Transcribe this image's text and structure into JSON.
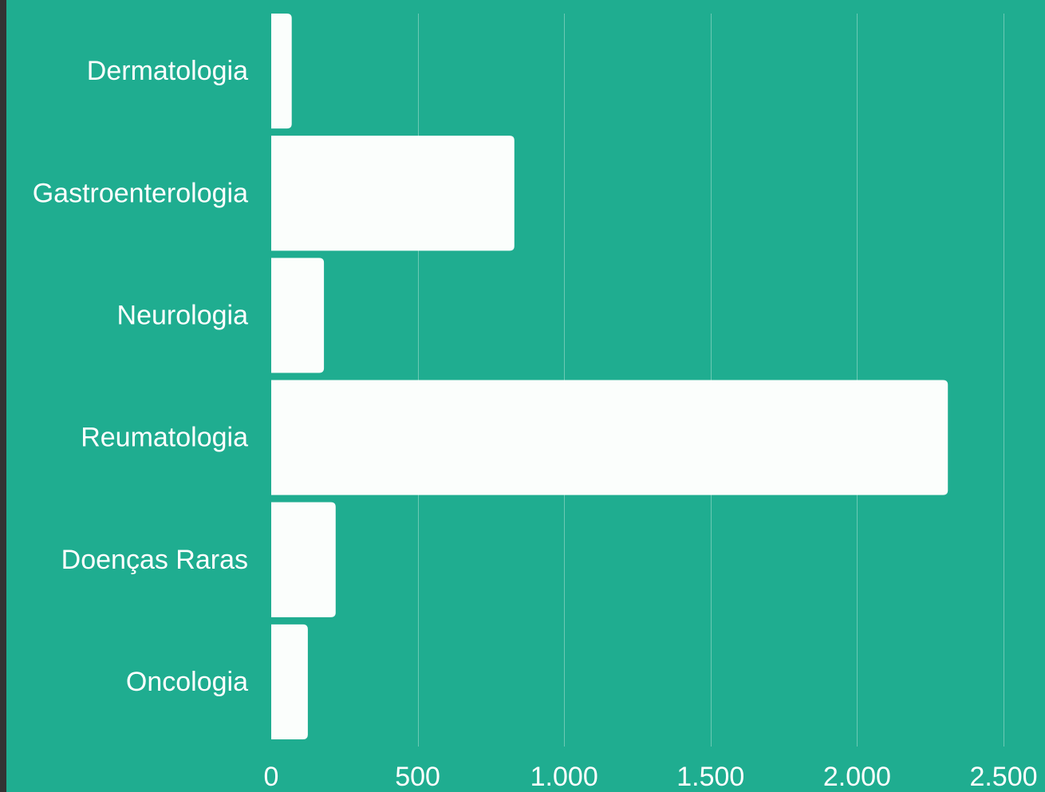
{
  "chart_data": {
    "type": "bar",
    "orientation": "horizontal",
    "categories": [
      "Dermatologia",
      "Gastroenterologia",
      "Neurologia",
      "Reumatologia",
      "Doenças Raras",
      "Oncologia"
    ],
    "values": [
      70,
      830,
      180,
      2310,
      220,
      125
    ],
    "xlim": [
      0,
      2500
    ],
    "xticks": [
      0,
      500,
      1000,
      1500,
      2000,
      2500
    ],
    "xtick_labels": [
      "0",
      "500",
      "1.000",
      "1.500",
      "2.000",
      "2.500"
    ],
    "grid": "vertical",
    "title": "",
    "xlabel": "",
    "ylabel": "",
    "colors": {
      "background": "#1fad90",
      "bar": "#fbfefc",
      "grid": "#6cc9b4",
      "text": "#ffffff",
      "frame": "#333333"
    }
  }
}
